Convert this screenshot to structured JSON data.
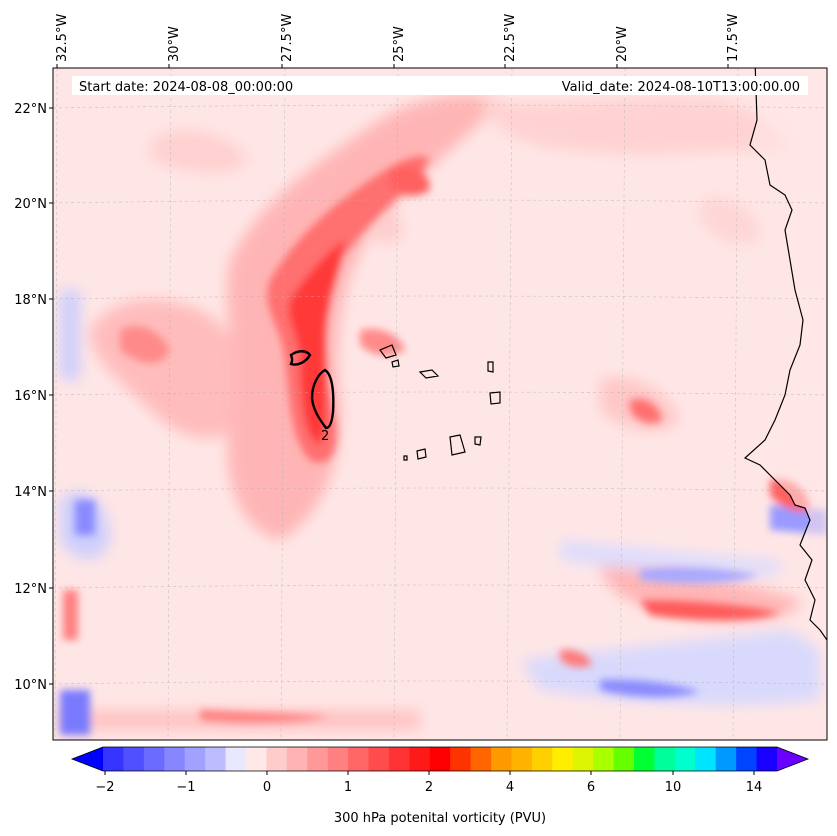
{
  "chart_data": {
    "type": "heatmap",
    "title": "",
    "start_date_label": "Start date: 2024-08-08_00:00:00",
    "valid_date_label": "Valid_date: 2024-08-10T13:00:00.00",
    "colorbar_label": "300 hPa potenital vorticity (PVU)",
    "x_ticks": [
      "32.5°W",
      "30°W",
      "27.5°W",
      "25°W",
      "22.5°W",
      "20°W",
      "17.5°W"
    ],
    "y_ticks": [
      "22°N",
      "20°N",
      "18°N",
      "16°N",
      "14°N",
      "12°N",
      "10°N"
    ],
    "colorbar_ticks": [
      "−2",
      "−1",
      "0",
      "1",
      "2",
      "4",
      "6",
      "10",
      "14"
    ],
    "contour_label": "2",
    "colors": {
      "neg_strong": "#0000ff",
      "neg_light": "#e6e9ff",
      "pos_light": "#ffe6e6",
      "pos_mid": "#ff8080",
      "pos_strong": "#ff1a1a",
      "coast": "#000000"
    },
    "colorbar_colors": [
      "#1a1aff",
      "#3535ff",
      "#5050ff",
      "#6b6bff",
      "#8686ff",
      "#a1a1ff",
      "#bcbcff",
      "#e8e8ff",
      "#ffe8e8",
      "#ffcccc",
      "#ffb3b3",
      "#ff9999",
      "#ff8080",
      "#ff6666",
      "#ff4d4d",
      "#ff3333",
      "#ff1a1a",
      "#ff0000",
      "#ff3300",
      "#ff6600",
      "#ff9900",
      "#ffb300",
      "#ffd000",
      "#ffee00",
      "#ddf500",
      "#aaff00",
      "#66ff00",
      "#00ff33",
      "#00ff99",
      "#00ffcc",
      "#00e5ff",
      "#0099ff",
      "#0044ff",
      "#1a00ff",
      "#6a00ff"
    ]
  }
}
